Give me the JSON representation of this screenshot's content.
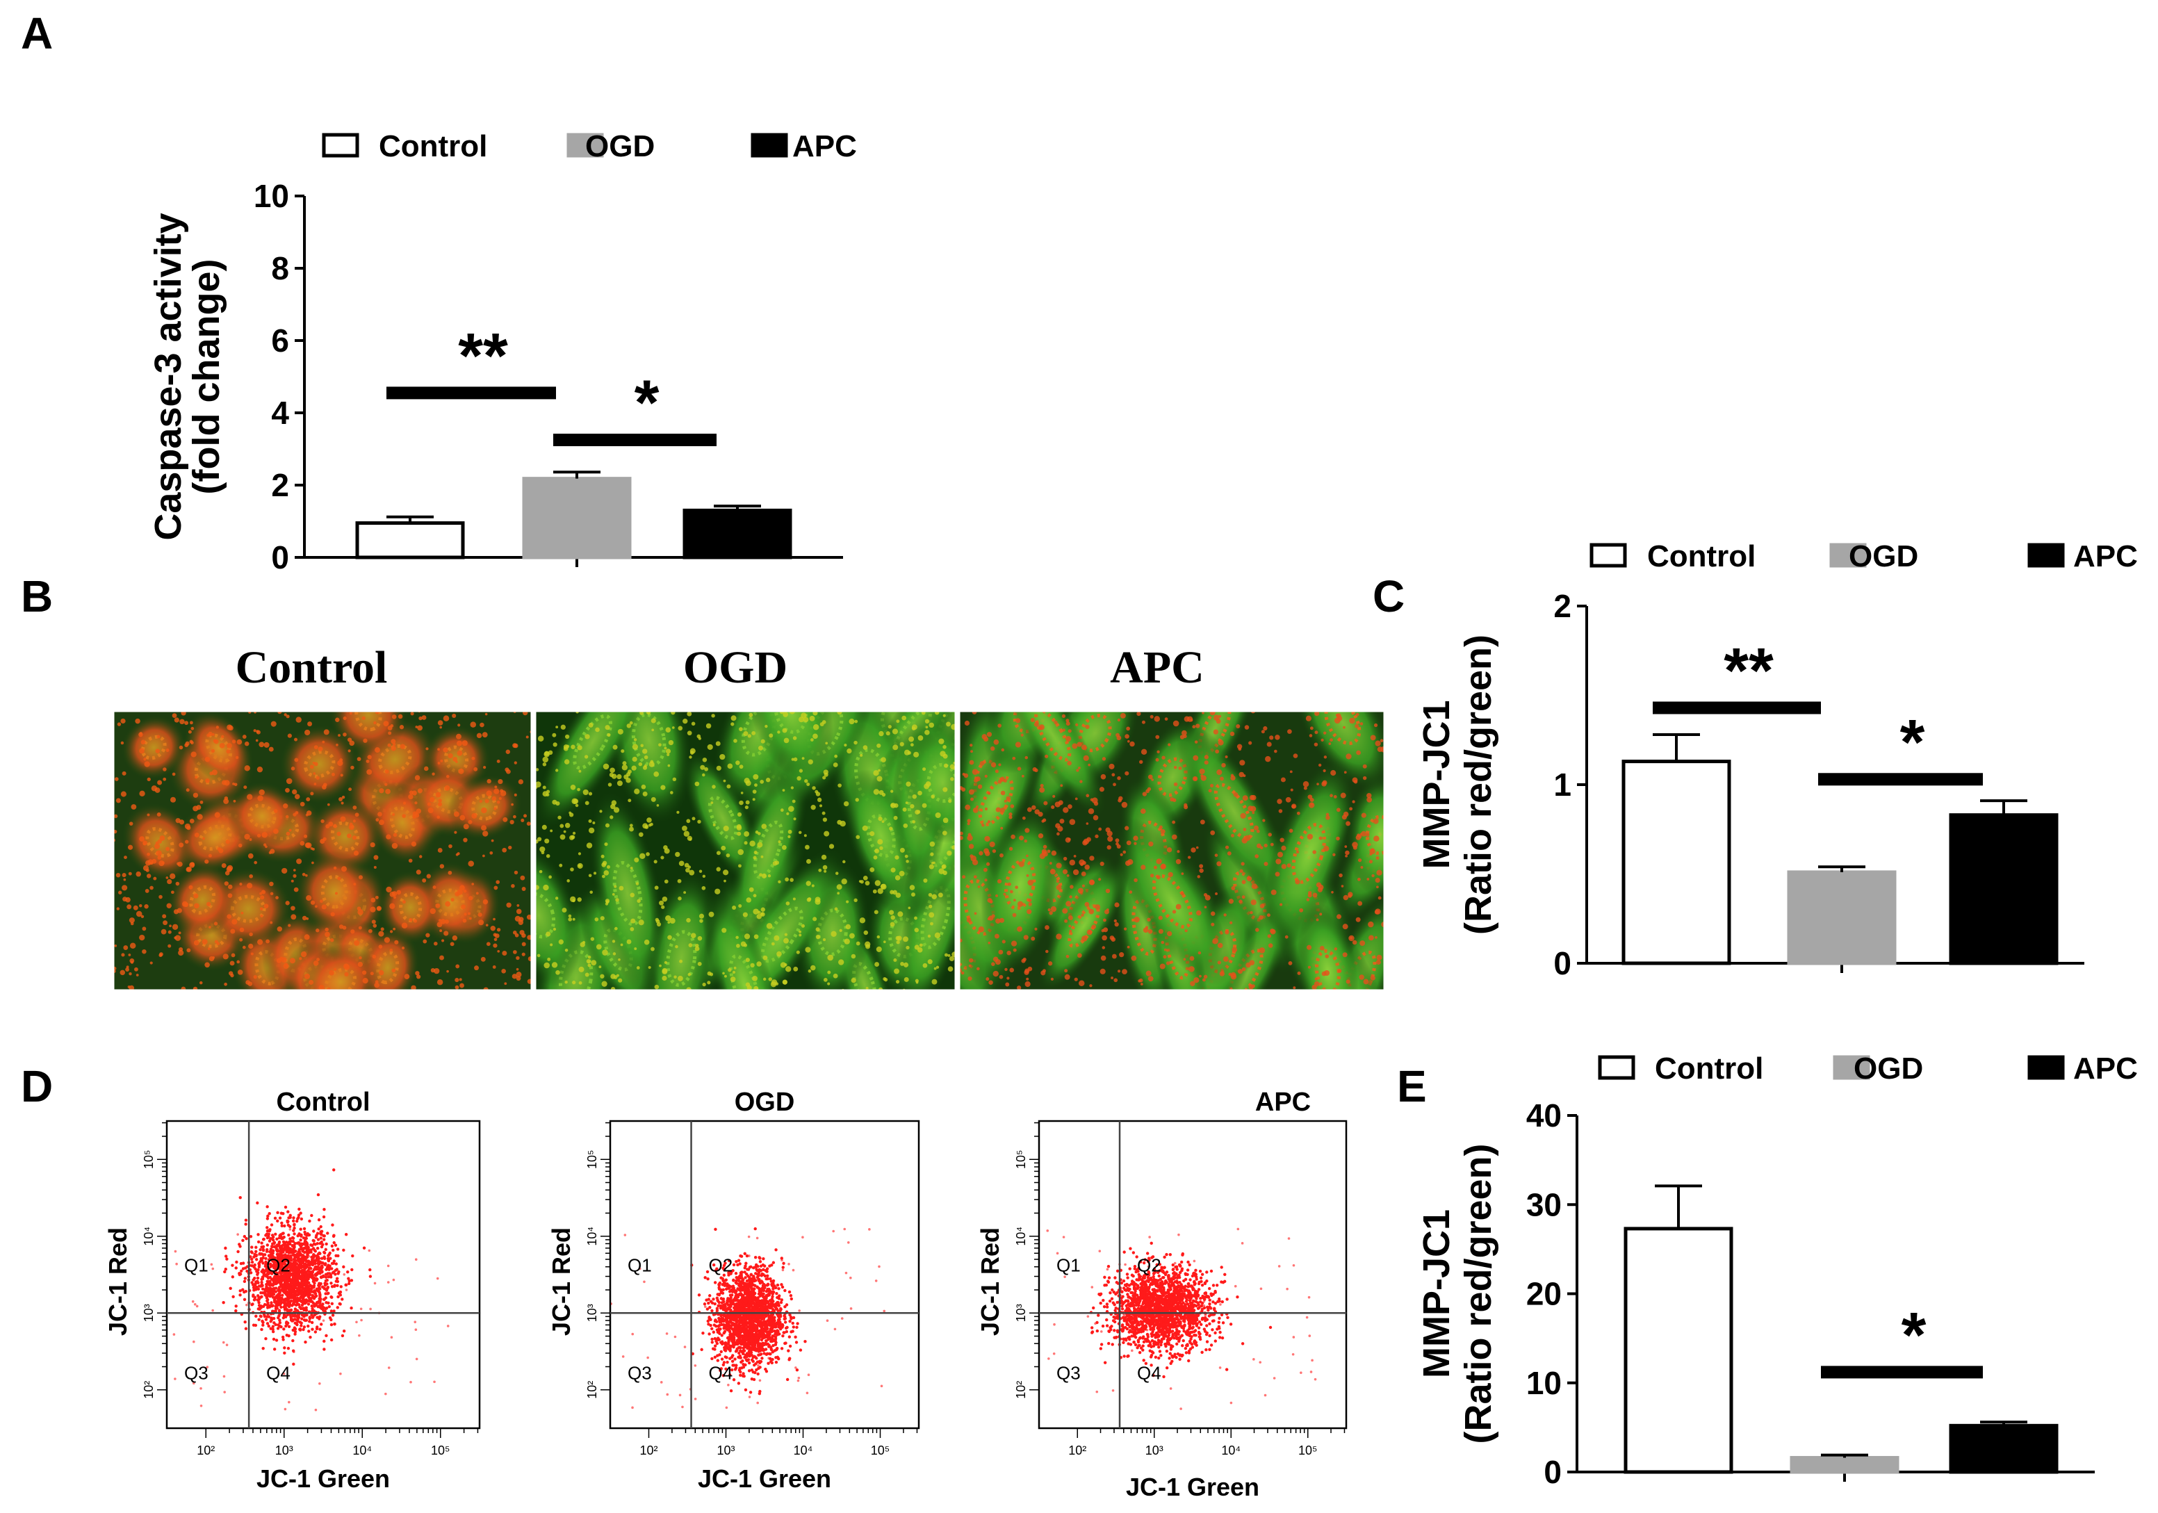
{
  "figure": {
    "panels": {
      "A": "A",
      "B": "B",
      "C": "C",
      "D": "D",
      "E": "E"
    },
    "colors": {
      "control": "#ffffff",
      "ogd": "#a6a6a6",
      "apc": "#000000",
      "cell_red": "#e8621a",
      "cell_green": "#3fa021",
      "dot_red": "#ff1a1a"
    }
  },
  "chart_data": [
    {
      "id": "A",
      "type": "bar",
      "categories": [
        "Control",
        "OGD",
        "APC"
      ],
      "values": [
        0.95,
        2.18,
        1.3
      ],
      "errors": [
        0.17,
        0.18,
        0.12
      ],
      "ylabel_line1": "Caspase-3 activity",
      "ylabel_line2": "(fold change)",
      "ylim": [
        0,
        10
      ],
      "yticks": [
        0,
        2,
        4,
        6,
        8,
        10
      ],
      "ytick_labels": [
        "0",
        "2",
        "4",
        "6",
        "8",
        "10"
      ],
      "legend": [
        "Control",
        "OGD",
        "APC"
      ],
      "significance": [
        {
          "from": "Control",
          "to": "OGD",
          "y": 4.55,
          "label": "**"
        },
        {
          "from": "OGD",
          "to": "APC",
          "y": 3.25,
          "label": "*"
        }
      ]
    },
    {
      "id": "C",
      "type": "bar",
      "categories": [
        "Control",
        "OGD",
        "APC"
      ],
      "values": [
        1.13,
        0.51,
        0.83
      ],
      "errors": [
        0.15,
        0.03,
        0.08
      ],
      "ylabel_line1": "MMP-JC1",
      "ylabel_line2": "(Ratio red/green)",
      "ylim": [
        0,
        2
      ],
      "yticks": [
        0,
        1,
        2
      ],
      "ytick_labels": [
        "0",
        "1",
        "2"
      ],
      "legend": [
        "Control",
        "OGD",
        "APC"
      ],
      "significance": [
        {
          "from": "Control",
          "to": "OGD",
          "y": 1.43,
          "label": "**"
        },
        {
          "from": "OGD",
          "to": "APC",
          "y": 1.03,
          "label": "*"
        }
      ]
    },
    {
      "id": "E",
      "type": "bar",
      "categories": [
        "Control",
        "OGD",
        "APC"
      ],
      "values": [
        27.3,
        1.6,
        5.2
      ],
      "errors": [
        4.8,
        0.3,
        0.4
      ],
      "ylabel_line1": "MMP-JC1",
      "ylabel_line2": "(Ratio red/green)",
      "ylim": [
        0,
        40
      ],
      "yticks": [
        0,
        10,
        20,
        30,
        40
      ],
      "ytick_labels": [
        "0",
        "10",
        "20",
        "30",
        "40"
      ],
      "legend": [
        "Control",
        "OGD",
        "APC"
      ],
      "significance": [
        {
          "from": "OGD",
          "to": "APC",
          "y": 11.2,
          "label": "*"
        }
      ]
    }
  ],
  "micrographs": {
    "labels": [
      "Control",
      "OGD",
      "APC"
    ]
  },
  "flow_cytometry": {
    "plots": [
      {
        "title": "Control",
        "center": [
          3.1,
          3.45
        ],
        "spread": [
          0.28,
          0.33
        ],
        "n": 1800
      },
      {
        "title": "OGD",
        "center": [
          3.3,
          2.95
        ],
        "spread": [
          0.22,
          0.32
        ],
        "n": 1800
      },
      {
        "title": "APC",
        "center": [
          3.1,
          3.05
        ],
        "spread": [
          0.33,
          0.26
        ],
        "n": 1800
      }
    ],
    "xlabel": "JC-1 Green",
    "ylabel": "JC-1 Red",
    "quadrants": [
      "Q1",
      "Q2",
      "Q3",
      "Q4"
    ],
    "tick_labels": [
      "10²",
      "10³",
      "10⁴",
      "10⁵"
    ],
    "gate": {
      "x": 2.55,
      "y": 3.0
    },
    "range": [
      1.5,
      5.5
    ]
  }
}
